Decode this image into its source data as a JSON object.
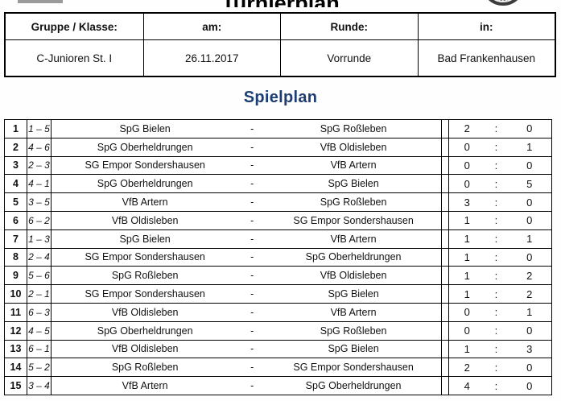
{
  "page": {
    "title": "Turnierplan"
  },
  "info_table": {
    "headers": [
      "Gruppe / Klasse:",
      "am:",
      "Runde:",
      "in:"
    ],
    "values": [
      "C-Junioren St. I",
      "26.11.2017",
      "Vorrunde",
      "Bad Frankenhausen"
    ]
  },
  "section": {
    "title": "Spielplan"
  },
  "separators": {
    "team": "-",
    "score": ":"
  },
  "colors": {
    "heading_blue": "#1e3d73"
  },
  "matches": [
    {
      "no": "1",
      "pairing": "1 – 5",
      "home": "SpG Bielen",
      "away": "SpG Roßleben",
      "score_home": "2",
      "score_away": "0"
    },
    {
      "no": "2",
      "pairing": "4 – 6",
      "home": "SpG Oberheldrungen",
      "away": "VfB Oldisleben",
      "score_home": "0",
      "score_away": "1"
    },
    {
      "no": "3",
      "pairing": "2 – 3",
      "home": "SG Empor Sondershausen",
      "away": "VfB Artern",
      "score_home": "0",
      "score_away": "0"
    },
    {
      "no": "4",
      "pairing": "4 – 1",
      "home": "SpG Oberheldrungen",
      "away": "SpG Bielen",
      "score_home": "0",
      "score_away": "5"
    },
    {
      "no": "5",
      "pairing": "3 – 5",
      "home": "VfB Artern",
      "away": "SpG Roßleben",
      "score_home": "3",
      "score_away": "0"
    },
    {
      "no": "6",
      "pairing": "6 – 2",
      "home": "VfB Oldisleben",
      "away": "SG Empor Sondershausen",
      "score_home": "1",
      "score_away": "0"
    },
    {
      "no": "7",
      "pairing": "1 – 3",
      "home": "SpG Bielen",
      "away": "VfB Artern",
      "score_home": "1",
      "score_away": "1"
    },
    {
      "no": "8",
      "pairing": "2 – 4",
      "home": "SG Empor Sondershausen",
      "away": "SpG Oberheldrungen",
      "score_home": "1",
      "score_away": "0"
    },
    {
      "no": "9",
      "pairing": "5 – 6",
      "home": "SpG Roßleben",
      "away": "VfB Oldisleben",
      "score_home": "1",
      "score_away": "2"
    },
    {
      "no": "10",
      "pairing": "2 – 1",
      "home": "SG Empor Sondershausen",
      "away": "SpG Bielen",
      "score_home": "1",
      "score_away": "2"
    },
    {
      "no": "11",
      "pairing": "6 – 3",
      "home": "VfB Oldisleben",
      "away": "VfB Artern",
      "score_home": "0",
      "score_away": "1"
    },
    {
      "no": "12",
      "pairing": "4 – 5",
      "home": "SpG Oberheldrungen",
      "away": "SpG Roßleben",
      "score_home": "0",
      "score_away": "0"
    },
    {
      "no": "13",
      "pairing": "6 – 1",
      "home": "VfB Oldisleben",
      "away": "SpG Bielen",
      "score_home": "1",
      "score_away": "3"
    },
    {
      "no": "14",
      "pairing": "5 – 2",
      "home": "SpG Roßleben",
      "away": "SG Empor Sondershausen",
      "score_home": "2",
      "score_away": "0"
    },
    {
      "no": "15",
      "pairing": "3 – 4",
      "home": "VfB Artern",
      "away": "SpG Oberheldrungen",
      "score_home": "4",
      "score_away": "0"
    }
  ]
}
